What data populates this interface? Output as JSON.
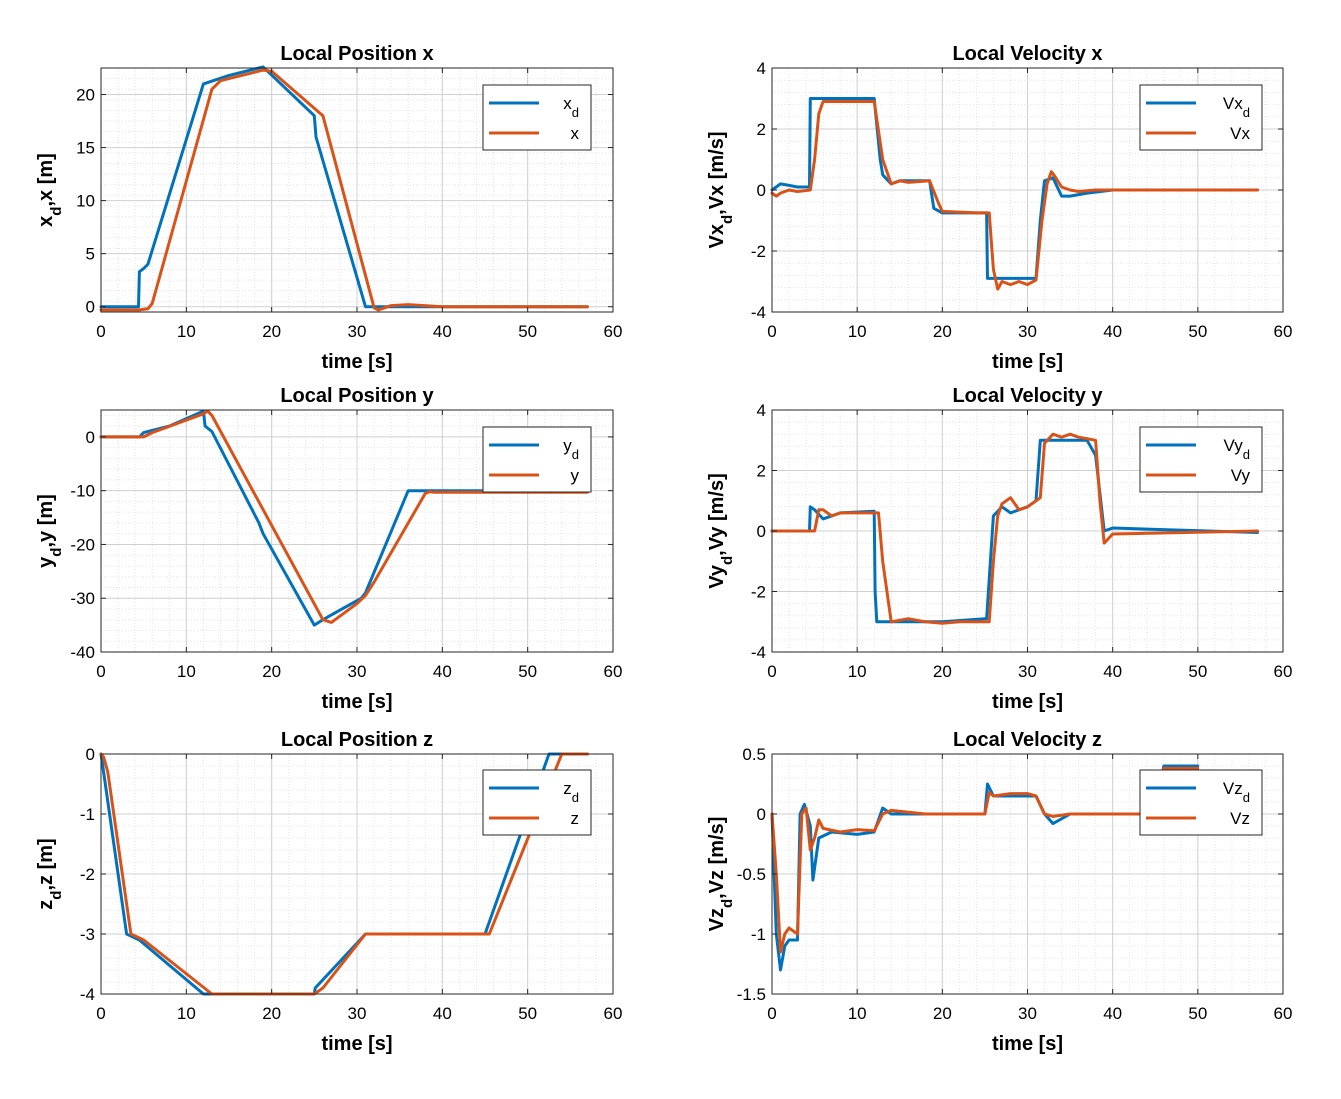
{
  "chart_data": [
    {
      "type": "line",
      "title": "Local Position x",
      "xlabel": "time [s]",
      "ylabel": "x_d,x [m]",
      "xlim": [
        0,
        60
      ],
      "ylim": [
        -0.5,
        22.5
      ],
      "xticks": [
        "0",
        "10",
        "20",
        "30",
        "40",
        "50",
        "60"
      ],
      "yticks": [
        "0",
        "5",
        "10",
        "15",
        "20"
      ],
      "grid": "on (major and minor)",
      "legend_position": "top-right",
      "series": [
        {
          "name": "x_d",
          "color": "#0072bd",
          "x": [
            0,
            4.4,
            4.5,
            5,
            5.5,
            12,
            15,
            19,
            25,
            25.2,
            31,
            57
          ],
          "y": [
            0,
            0,
            3.3,
            3.6,
            4,
            21,
            21.8,
            22.6,
            18,
            16,
            0,
            0
          ]
        },
        {
          "name": "x",
          "color": "#d95319",
          "x": [
            0,
            4.5,
            5.5,
            6,
            13,
            14,
            19,
            20,
            26,
            32,
            32.5,
            34,
            36,
            40,
            57
          ],
          "y": [
            -0.3,
            -0.3,
            -0.2,
            0.3,
            20.5,
            21.3,
            22.3,
            22.2,
            18,
            -0.1,
            -0.3,
            0.1,
            0.2,
            0,
            0
          ]
        }
      ]
    },
    {
      "type": "line",
      "title": "Local Velocity x",
      "xlabel": "time [s]",
      "ylabel": "Vx_d,Vx [m/s]",
      "xlim": [
        0,
        60
      ],
      "ylim": [
        -4,
        4
      ],
      "xticks": [
        "0",
        "10",
        "20",
        "30",
        "40",
        "50",
        "60"
      ],
      "yticks": [
        "-4",
        "-2",
        "0",
        "2",
        "4"
      ],
      "grid": "on (major and minor)",
      "legend_position": "top-right",
      "series": [
        {
          "name": "Vx_d",
          "color": "#0072bd",
          "x": [
            0,
            1,
            2,
            3,
            4.4,
            4.5,
            12,
            12.7,
            13,
            14,
            15,
            16,
            18.5,
            19,
            20,
            24,
            25.2,
            25.3,
            31,
            31.5,
            32,
            33,
            34,
            35,
            37,
            40,
            57
          ],
          "y": [
            0,
            0.2,
            0.15,
            0.1,
            0.1,
            3,
            3,
            1,
            0.5,
            0.2,
            0.3,
            0.3,
            0.3,
            -0.6,
            -0.75,
            -0.75,
            -0.75,
            -2.9,
            -2.9,
            -1,
            0.3,
            0.4,
            -0.2,
            -0.2,
            -0.1,
            0,
            0
          ]
        },
        {
          "name": "Vx",
          "color": "#d95319",
          "x": [
            0,
            0.5,
            1,
            2,
            3,
            4.5,
            5,
            5.5,
            6,
            7,
            10,
            12,
            13,
            14,
            15,
            16,
            18.5,
            19.5,
            20,
            24,
            25.5,
            26,
            26.5,
            27,
            28,
            29,
            30,
            31,
            31.7,
            32.3,
            32.8,
            33.2,
            34,
            35,
            36,
            38,
            40,
            57
          ],
          "y": [
            -0.1,
            -0.2,
            -0.1,
            0,
            -0.05,
            0,
            1,
            2.5,
            2.9,
            2.9,
            2.9,
            2.9,
            1,
            0.2,
            0.3,
            0.25,
            0.3,
            -0.4,
            -0.7,
            -0.75,
            -0.75,
            -2.6,
            -3.25,
            -3.0,
            -3.1,
            -3.0,
            -3.1,
            -2.95,
            -1,
            0.2,
            0.6,
            0.45,
            0.1,
            0,
            -0.05,
            0,
            0,
            0
          ]
        }
      ]
    },
    {
      "type": "line",
      "title": "Local Position y",
      "xlabel": "time [s]",
      "ylabel": "y_d,y [m]",
      "xlim": [
        0,
        60
      ],
      "ylim": [
        -40,
        5
      ],
      "xticks": [
        "0",
        "10",
        "20",
        "30",
        "40",
        "50",
        "60"
      ],
      "yticks": [
        "-40",
        "-30",
        "-20",
        "-10",
        "0"
      ],
      "grid": "on (major and minor)",
      "legend_position": "top-right",
      "series": [
        {
          "name": "y_d",
          "color": "#0072bd",
          "x": [
            0,
            4.5,
            5,
            8,
            12,
            12.2,
            13,
            18.5,
            19,
            25,
            26,
            30.5,
            31,
            36,
            57
          ],
          "y": [
            0,
            0,
            0.8,
            2,
            4.8,
            2,
            1,
            -16,
            -18,
            -35,
            -34,
            -30,
            -29,
            -10,
            -10
          ]
        },
        {
          "name": "y",
          "color": "#d95319",
          "x": [
            0,
            5,
            6,
            12,
            12.5,
            13,
            26,
            27,
            30,
            31,
            32,
            38,
            38.5,
            39,
            57
          ],
          "y": [
            0,
            0,
            0.8,
            4.3,
            4.8,
            4,
            -34,
            -34.5,
            -31,
            -29.5,
            -27,
            -10.5,
            -10.2,
            -10.3,
            -10.3
          ]
        }
      ]
    },
    {
      "type": "line",
      "title": "Local Velocity y",
      "xlabel": "time [s]",
      "ylabel": "Vy_d,Vy [m/s]",
      "xlim": [
        0,
        60
      ],
      "ylim": [
        -4,
        4
      ],
      "xticks": [
        "0",
        "10",
        "20",
        "30",
        "40",
        "50",
        "60"
      ],
      "yticks": [
        "-4",
        "-2",
        "0",
        "2",
        "4"
      ],
      "grid": "on (major and minor)",
      "legend_position": "top-right",
      "series": [
        {
          "name": "Vy_d",
          "color": "#0072bd",
          "x": [
            0,
            4.4,
            4.5,
            5,
            6,
            8,
            12,
            12.1,
            12.3,
            20,
            25,
            25.2,
            26,
            27,
            28,
            30,
            31,
            31.5,
            36,
            37,
            38,
            39,
            40,
            57
          ],
          "y": [
            0,
            0,
            0.8,
            0.7,
            0.4,
            0.6,
            0.65,
            -2,
            -3,
            -3,
            -2.9,
            -2.9,
            0.5,
            0.8,
            0.6,
            0.8,
            1,
            3,
            3,
            3,
            2.5,
            0,
            0.1,
            -0.05
          ]
        },
        {
          "name": "Vy",
          "color": "#d95319",
          "x": [
            0,
            5,
            5.5,
            6,
            7,
            8,
            10,
            12.5,
            13,
            14,
            16,
            18,
            20,
            22,
            25.5,
            26,
            26.5,
            27,
            28,
            29,
            30,
            31,
            31.5,
            32,
            33,
            34,
            35,
            36,
            37,
            38,
            38.5,
            39,
            40,
            57
          ],
          "y": [
            0,
            0,
            0.7,
            0.7,
            0.5,
            0.6,
            0.6,
            0.6,
            -1,
            -3,
            -2.9,
            -3,
            -3.05,
            -3,
            -3,
            -1,
            0.5,
            0.9,
            1.1,
            0.7,
            0.8,
            1.0,
            1.1,
            2.9,
            3.2,
            3.1,
            3.2,
            3.1,
            3.05,
            3,
            1,
            -0.4,
            -0.1,
            0
          ]
        }
      ]
    },
    {
      "type": "line",
      "title": "Local Position z",
      "xlabel": "time [s]",
      "ylabel": "z_d,z [m]",
      "xlim": [
        0,
        60
      ],
      "ylim": [
        -4,
        0
      ],
      "xticks": [
        "0",
        "10",
        "20",
        "30",
        "40",
        "50",
        "60"
      ],
      "yticks": [
        "-4",
        "-3",
        "-2",
        "-1",
        "0"
      ],
      "grid": "on (major and minor)",
      "legend_position": "top-right",
      "series": [
        {
          "name": "z_d",
          "color": "#0072bd",
          "x": [
            0,
            0.3,
            3,
            4.5,
            12,
            25,
            25.1,
            31,
            45,
            52.5,
            57
          ],
          "y": [
            0,
            -0.3,
            -3,
            -3.1,
            -4,
            -4,
            -3.9,
            -3,
            -3,
            0,
            0
          ]
        },
        {
          "name": "z",
          "color": "#d95319",
          "x": [
            0,
            0.3,
            0.8,
            3.5,
            5,
            13,
            25,
            26,
            31,
            45.5,
            54,
            57
          ],
          "y": [
            0,
            -0.05,
            -0.3,
            -3,
            -3.1,
            -4,
            -4,
            -3.9,
            -3,
            -3,
            0,
            0
          ]
        }
      ]
    },
    {
      "type": "line",
      "title": "Local Velocity z",
      "xlabel": "time [s]",
      "ylabel": "Vz_d,Vz [m/s]",
      "xlim": [
        0,
        60
      ],
      "ylim": [
        -1.5,
        0.5
      ],
      "xticks": [
        "0",
        "10",
        "20",
        "30",
        "40",
        "50",
        "60"
      ],
      "yticks": [
        "-1.5",
        "-1",
        "-0.5",
        "0",
        "0.5"
      ],
      "grid": "on (major and minor)",
      "legend_position": "top-right",
      "series": [
        {
          "name": "Vz_d",
          "color": "#0072bd",
          "x": [
            0,
            0.5,
            1,
            1.5,
            2,
            3,
            3.3,
            3.8,
            4.5,
            4.8,
            5.5,
            7,
            10,
            12,
            13,
            14,
            18,
            22,
            25,
            25.3,
            26,
            28,
            30,
            31,
            32,
            33,
            35,
            45,
            46,
            50
          ],
          "y": [
            0,
            -1,
            -1.3,
            -1.1,
            -1.05,
            -1.05,
            0,
            0.08,
            -0.1,
            -0.55,
            -0.2,
            -0.15,
            -0.17,
            -0.15,
            0.05,
            0,
            0,
            0,
            0,
            0.25,
            0.15,
            0.15,
            0.15,
            0.15,
            0,
            -0.08,
            0,
            0,
            0.4,
            0.4
          ]
        },
        {
          "name": "Vz",
          "color": "#d95319",
          "x": [
            0,
            0.5,
            1,
            1.5,
            2,
            3,
            3.5,
            4,
            4.5,
            5,
            5.5,
            6,
            8,
            10,
            12,
            13,
            14,
            18,
            22,
            25,
            25.5,
            26,
            28,
            30,
            31,
            32,
            33,
            35,
            45,
            46,
            50
          ],
          "y": [
            0,
            -0.5,
            -1.15,
            -1.0,
            -0.95,
            -1.0,
            0,
            0.05,
            -0.3,
            -0.2,
            -0.05,
            -0.12,
            -0.15,
            -0.13,
            -0.14,
            0,
            0.03,
            0,
            0,
            0,
            0.18,
            0.15,
            0.17,
            0.17,
            0.15,
            0,
            -0.02,
            0,
            0,
            0.38,
            0.38
          ]
        }
      ]
    }
  ]
}
